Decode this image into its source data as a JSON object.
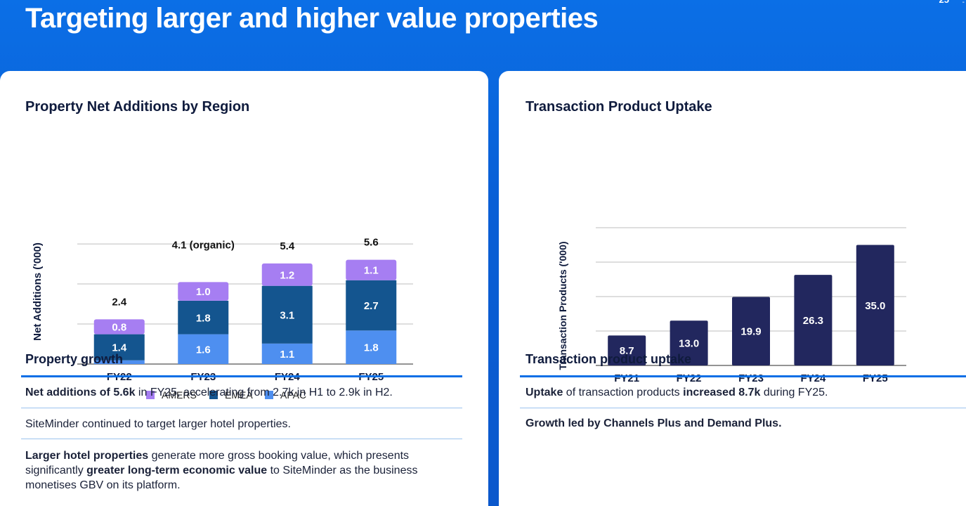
{
  "page": {
    "title": "Targeting larger and higher value properties",
    "page_number": "25",
    "page_mark": "-"
  },
  "left_card": {
    "title": "Property Net Additions by Region",
    "section_heading": "Property growth",
    "bullets": [
      {
        "bold_1": "Net additions of 5.6k",
        "text_1": " in FY25, accelerating from 2.7k in H1 to 2.9k in H2."
      },
      {
        "text_1": "SiteMinder continued to target larger hotel properties."
      },
      {
        "bold_1": "Larger hotel properties",
        "text_1": " generate more gross booking value, which presents significantly ",
        "bold_2": "greater long-term economic value",
        "text_2": " to SiteMinder as the business monetises GBV on its platform."
      }
    ]
  },
  "right_card": {
    "title": "Transaction Product Uptake",
    "section_heading": "Transaction product uptake",
    "bullets": [
      {
        "bold_1": "Uptake",
        "text_1": " of transaction products ",
        "bold_2": "increased 8.7k",
        "text_2": " during FY25."
      },
      {
        "bold_1": "Growth led by Channels Plus and Demand Plus."
      }
    ]
  },
  "colors": {
    "amers": "#a67ef2",
    "emea": "#14558f",
    "apac": "#4e8ff0",
    "transaction_bar": "#22275e",
    "accent": "#0b6fe6"
  },
  "chart_data": [
    {
      "type": "bar",
      "stacked": true,
      "title": "Property Net Additions by Region",
      "ylabel": "Net Additions ('000)",
      "xlabel": "",
      "categories": [
        "FY22",
        "FY23",
        "FY24",
        "FY25"
      ],
      "series": [
        {
          "name": "APAC",
          "values": [
            0.2,
            1.6,
            1.1,
            1.8
          ],
          "labels": [
            "",
            "1.6",
            "1.1",
            "1.8"
          ]
        },
        {
          "name": "EMEA",
          "values": [
            1.4,
            1.8,
            3.1,
            2.7
          ],
          "labels": [
            "1.4",
            "1.8",
            "3.1",
            "2.7"
          ]
        },
        {
          "name": "AMERS",
          "values": [
            0.8,
            1.0,
            1.2,
            1.1
          ],
          "labels": [
            "0.8",
            "1.0",
            "1.2",
            "1.1"
          ]
        }
      ],
      "totals": [
        "2.4",
        "4.1 (organic)",
        "5.4",
        "5.6"
      ],
      "legend": [
        "AMERS",
        "EMEA",
        "APAC"
      ],
      "legend_position": "bottom",
      "ylim": [
        0,
        6.5
      ],
      "grid": true
    },
    {
      "type": "bar",
      "title": "Transaction Product Uptake",
      "ylabel": "Transaction Products ('000)",
      "xlabel": "",
      "categories": [
        "FY21",
        "FY22",
        "FY23",
        "FY24",
        "FY25"
      ],
      "values": [
        8.7,
        13.0,
        19.9,
        26.3,
        35.0
      ],
      "labels": [
        "8.7",
        "13.0",
        "19.9",
        "26.3",
        "35.0"
      ],
      "ylim": [
        0,
        40
      ],
      "grid": true
    }
  ]
}
